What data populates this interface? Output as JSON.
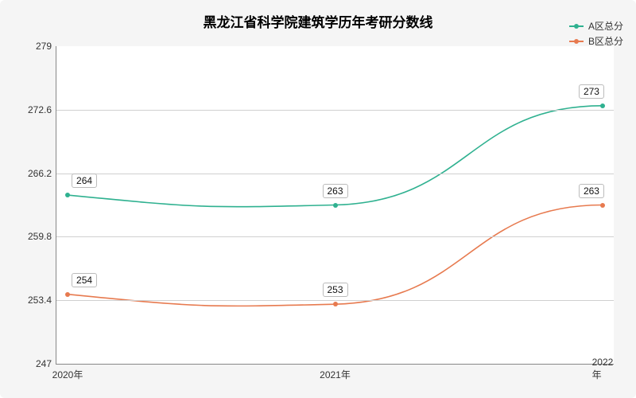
{
  "chart": {
    "type": "line",
    "title": "黑龙江省科学院建筑学历年考研分数线",
    "title_fontsize": 17,
    "background_color": "#f5f5f5",
    "plot_background": "#ffffff",
    "grid_color": "#d0d0d0",
    "axis_color": "#888888",
    "label_fontsize": 12,
    "ylim": [
      247,
      279
    ],
    "yticks": [
      247,
      253.4,
      259.8,
      266.2,
      272.6,
      279
    ],
    "categories": [
      "2020年",
      "2021年",
      "2022年"
    ],
    "x_positions_pct": [
      2,
      50,
      98
    ],
    "series": [
      {
        "name": "A区总分",
        "color": "#2fb190",
        "values": [
          264,
          263,
          273
        ],
        "smoothing": true
      },
      {
        "name": "B区总分",
        "color": "#e77a4f",
        "values": [
          254,
          253,
          263
        ],
        "smoothing": true
      }
    ],
    "point_label_bg": "#ffffff",
    "point_label_border": "#bbbbbb"
  }
}
